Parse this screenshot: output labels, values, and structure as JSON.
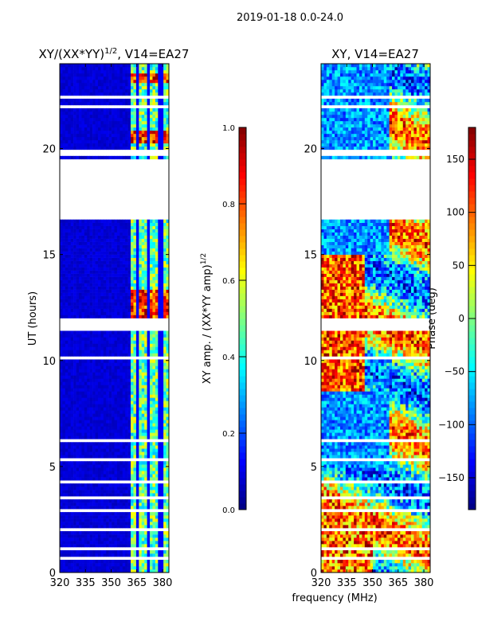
{
  "chart_data": [
    {
      "type": "heatmap",
      "title": "XY/(XX*YY)",
      "title_sup": "1/2",
      "title_suffix": ", V14=EA27",
      "suptitle": "2019-01-18 0.0-24.0",
      "ylabel": "UT (hours)",
      "xlabel": "frequency (MHz)",
      "xlim": [
        320,
        383.7
      ],
      "ylim": [
        0,
        24
      ],
      "xticks": [
        "320",
        "335",
        "350",
        "365",
        "380"
      ],
      "xtick_values": [
        320,
        335,
        350,
        365,
        380
      ],
      "yticks": [
        "0",
        "5",
        "10",
        "15",
        "20"
      ],
      "ytick_values": [
        0,
        5,
        10,
        15,
        20
      ],
      "colorbar": {
        "label": "XY amp. / (XX*YY amp)",
        "label_sup": "1/2",
        "range": [
          0,
          1
        ],
        "ticks": [
          "0.0",
          "0.2",
          "0.4",
          "0.6",
          "0.8",
          "1.0"
        ],
        "tick_values": [
          0,
          0.2,
          0.4,
          0.6,
          0.8,
          1.0
        ]
      },
      "band_model": {
        "low_band": [
          320,
          361
        ],
        "low_value": 0.08,
        "high_band": [
          361,
          383.7
        ],
        "high_value": 0.45,
        "channel_edges": [
          361,
          365,
          368,
          372,
          376,
          379,
          383.7
        ]
      },
      "bright_hours": [
        [
          12.0,
          13.3
        ],
        [
          20.2,
          20.8
        ],
        [
          23.1,
          23.6
        ]
      ]
    },
    {
      "type": "heatmap",
      "title": "XY, V14=EA27",
      "xlim": [
        320,
        383.7
      ],
      "ylim": [
        0,
        24
      ],
      "xticks": [
        "320",
        "335",
        "350",
        "365",
        "380"
      ],
      "xtick_values": [
        320,
        335,
        350,
        365,
        380
      ],
      "yticks": [
        "0",
        "5",
        "10",
        "15",
        "20"
      ],
      "ytick_values": [
        0,
        5,
        10,
        15,
        20
      ],
      "colorbar": {
        "label": "Phase (deg)",
        "range": [
          -180,
          180
        ],
        "ticks": [
          "−150",
          "−100",
          "−50",
          "0",
          "50",
          "100",
          "150"
        ],
        "tick_values": [
          -150,
          -100,
          -50,
          0,
          50,
          100,
          150
        ]
      }
    }
  ],
  "flagged_hours": [
    [
      16.7,
      19.45
    ],
    [
      19.6,
      19.95
    ],
    [
      11.35,
      12.05
    ],
    [
      22.3,
      22.5
    ],
    [
      21.9,
      22.0
    ],
    [
      8.5,
      8.6
    ],
    [
      7.0,
      7.05
    ],
    [
      6.1,
      6.25
    ],
    [
      5.3,
      5.4
    ],
    [
      4.9,
      5.0
    ],
    [
      4.2,
      4.3
    ],
    [
      3.5,
      3.6
    ],
    [
      2.9,
      3.0
    ],
    [
      1.9,
      2.05
    ],
    [
      1.1,
      1.2
    ],
    [
      0.6,
      0.7
    ],
    [
      9.7,
      9.75
    ],
    [
      13.9,
      13.95
    ],
    [
      15.1,
      15.2
    ],
    [
      16.0,
      16.05
    ],
    [
      20.95,
      21.05
    ],
    [
      21.4,
      21.5
    ],
    [
      23.4,
      23.45
    ],
    [
      7.6,
      7.7
    ],
    [
      10.1,
      10.15
    ],
    [
      14.5,
      14.55
    ]
  ]
}
